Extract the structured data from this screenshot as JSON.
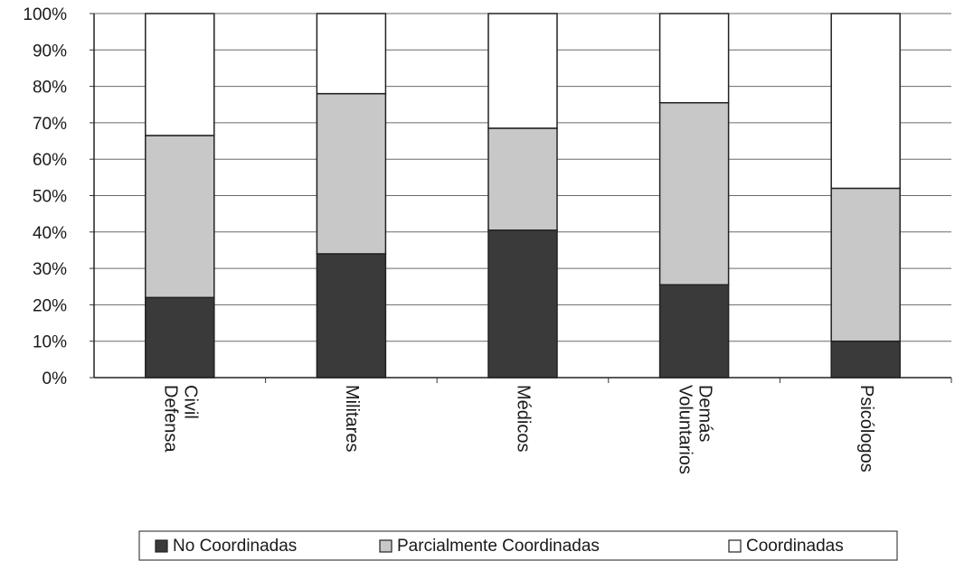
{
  "chart_data": {
    "type": "bar",
    "stacked": true,
    "percent": true,
    "categories": [
      "Defensa Civil",
      "Militares",
      "Médicos",
      "Voluntarios Demás",
      "Psicólogos"
    ],
    "series": [
      {
        "name": "No Coordinadas",
        "values": [
          22,
          34,
          40.5,
          25.5,
          10
        ],
        "color": "#3a3a3a"
      },
      {
        "name": "Parcialmente Coordinadas",
        "values": [
          44.5,
          44,
          28,
          50,
          42
        ],
        "color": "#c8c8c8"
      },
      {
        "name": "Coordinadas",
        "values": [
          33.5,
          22,
          31.5,
          24.5,
          48
        ],
        "color": "#ffffff"
      }
    ],
    "yticks": [
      "0%",
      "10%",
      "20%",
      "30%",
      "40%",
      "50%",
      "60%",
      "70%",
      "80%",
      "90%",
      "100%"
    ],
    "ylim": [
      0,
      100
    ],
    "grid": true,
    "legend_position": "bottom"
  }
}
